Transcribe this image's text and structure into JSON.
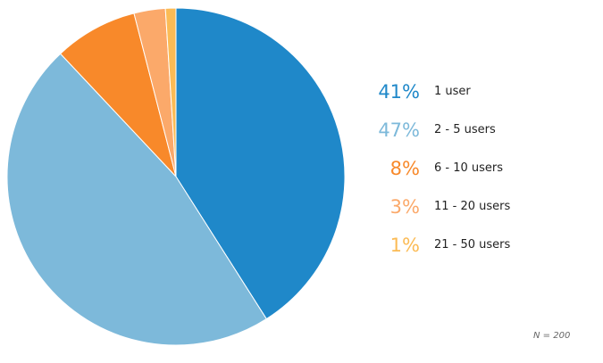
{
  "chart_data": {
    "type": "pie",
    "categories": [
      "1 user",
      "2 - 5 users",
      "6 - 10 users",
      "11 - 20 users",
      "21 - 50 users"
    ],
    "values": [
      41,
      47,
      8,
      3,
      1
    ],
    "labels": [
      "41%",
      "47%",
      "8%",
      "3%",
      "1%"
    ],
    "colors": [
      "#1f88c9",
      "#7db9da",
      "#f8892a",
      "#fba96a",
      "#fbbb55"
    ],
    "legend_position": "right",
    "note": "N = 200"
  }
}
